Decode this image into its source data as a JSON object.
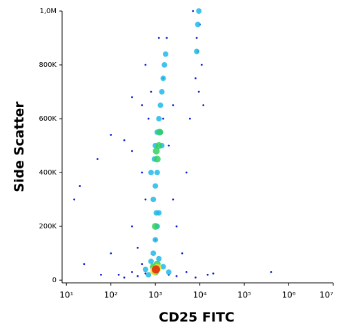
{
  "chart_data": {
    "type": "scatter",
    "x_label": "CD25 FITC",
    "y_label": "Side Scatter",
    "x_log": true,
    "xlim": [
      8,
      10000000
    ],
    "xticks": [
      {
        "value": 10,
        "label": "10¹"
      },
      {
        "value": 100,
        "label": "10²"
      },
      {
        "value": 1000,
        "label": "10³"
      },
      {
        "value": 10000,
        "label": "10⁴"
      },
      {
        "value": 100000,
        "label": "10⁵"
      },
      {
        "value": 1000000,
        "label": "10⁶"
      },
      {
        "value": 10000000,
        "label": "10⁷"
      }
    ],
    "ylim": [
      -10000,
      1000000
    ],
    "yticks": [
      0,
      {
        "value": 200000,
        "label": "200K"
      },
      {
        "value": 400000,
        "label": "400K"
      },
      {
        "value": 600000,
        "label": "600K"
      },
      {
        "value": 800000,
        "label": "800K"
      },
      {
        "value": 1000000,
        "label": "1,0M"
      }
    ],
    "series": [
      {
        "color": "#1020d0",
        "x": [
          150,
          200,
          300,
          400,
          600,
          2000,
          3000,
          5000,
          8000,
          15000,
          20000,
          500,
          400,
          300,
          600,
          500,
          300,
          200,
          100,
          50,
          20,
          700,
          500,
          800,
          1500,
          1800,
          2500,
          3000,
          5000,
          4000,
          6000,
          8000,
          9000,
          10000,
          7000,
          11000,
          8500,
          9500,
          12000,
          600,
          1200,
          25,
          60,
          1000,
          2000,
          1500,
          400000,
          300,
          100,
          15,
          2500
        ],
        "values": [
          20000,
          10000,
          30000,
          15000,
          25000,
          20000,
          15000,
          30000,
          10000,
          20000,
          25000,
          60000,
          120000,
          200000,
          300000,
          400000,
          480000,
          520000,
          540000,
          450000,
          350000,
          600000,
          650000,
          700000,
          750000,
          900000,
          300000,
          200000,
          400000,
          100000,
          600000,
          750000,
          850000,
          950000,
          1000000,
          800000,
          900000,
          700000,
          650000,
          800000,
          900000,
          60000,
          20000,
          150000,
          500000,
          600000,
          30000,
          680000,
          100000,
          300000,
          650000
        ]
      },
      {
        "color": "#20b8e8",
        "x": [
          900,
          1000,
          1100,
          1050,
          900,
          1000,
          1100,
          950,
          1000,
          1100,
          1200,
          1300,
          1400,
          1500,
          1600,
          1700,
          1300,
          800,
          1400,
          1200,
          9000,
          9500,
          8500,
          600,
          1500,
          800,
          2000,
          700,
          1200
        ],
        "values": [
          100000,
          150000,
          200000,
          250000,
          300000,
          350000,
          400000,
          450000,
          500000,
          550000,
          600000,
          650000,
          700000,
          750000,
          800000,
          840000,
          550000,
          400000,
          500000,
          250000,
          950000,
          1000000,
          850000,
          40000,
          50000,
          70000,
          30000,
          20000,
          80000
        ]
      },
      {
        "color": "#30d060",
        "x": [
          1000,
          1100,
          900,
          1000,
          1100,
          1200,
          1250,
          1050
        ],
        "values": [
          30000,
          60000,
          50000,
          200000,
          450000,
          500000,
          550000,
          480000
        ]
      },
      {
        "color": "#f0e020",
        "x": [
          1000,
          1100,
          950
        ],
        "values": [
          40000,
          45000,
          35000
        ]
      },
      {
        "color": "#e02010",
        "x": [
          1030
        ],
        "values": [
          40000
        ]
      }
    ]
  }
}
